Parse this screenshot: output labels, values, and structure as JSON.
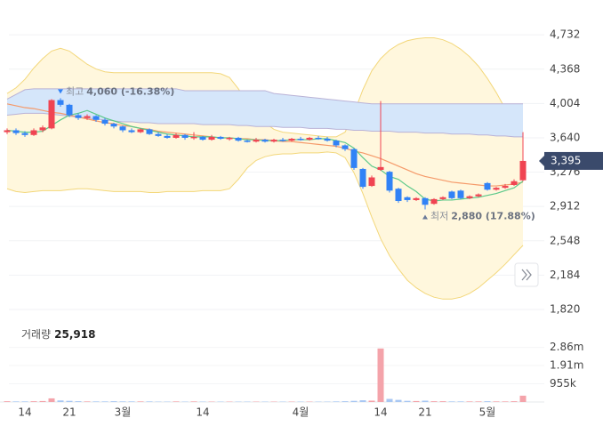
{
  "chart_data": {
    "type": "candlestick",
    "categories": [
      null,
      null,
      "14",
      null,
      null,
      null,
      null,
      "21",
      null,
      null,
      null,
      null,
      null,
      "3월",
      null,
      null,
      null,
      null,
      null,
      null,
      null,
      null,
      "14",
      null,
      null,
      null,
      null,
      null,
      null,
      null,
      null,
      null,
      null,
      "4월",
      null,
      null,
      null,
      null,
      null,
      null,
      null,
      null,
      "14",
      null,
      null,
      null,
      null,
      "21",
      null,
      null,
      null,
      null,
      null,
      null,
      "5월",
      null,
      null,
      null,
      null
    ],
    "open": [
      3700,
      3720,
      3690,
      3670,
      3720,
      3740,
      4040,
      3990,
      3880,
      3850,
      3870,
      3830,
      3790,
      3760,
      3720,
      3700,
      3730,
      3680,
      3660,
      3640,
      3670,
      3640,
      3650,
      3620,
      3650,
      3630,
      3640,
      3610,
      3600,
      3620,
      3600,
      3620,
      3610,
      3630,
      3620,
      3640,
      3630,
      3610,
      3560,
      3520,
      3310,
      3130,
      3300,
      3280,
      3100,
      3010,
      2980,
      3000,
      2940,
      2990,
      3070,
      3080,
      3000,
      3020,
      3160,
      3090,
      3110,
      3140,
      3190
    ],
    "high": [
      3740,
      3740,
      3710,
      3740,
      3770,
      4050,
      4060,
      4000,
      3900,
      3890,
      3880,
      3850,
      3800,
      3770,
      3740,
      3740,
      3740,
      3700,
      3680,
      3690,
      3680,
      3700,
      3660,
      3670,
      3660,
      3650,
      3650,
      3620,
      3640,
      3630,
      3630,
      3640,
      3640,
      3650,
      3650,
      3660,
      3650,
      3620,
      3570,
      3530,
      3320,
      3240,
      4030,
      3290,
      3110,
      3020,
      3010,
      3010,
      3000,
      3020,
      3080,
      3090,
      3030,
      3050,
      3170,
      3120,
      3150,
      3200,
      3700
    ],
    "low": [
      3680,
      3670,
      3650,
      3660,
      3700,
      3730,
      3970,
      3860,
      3830,
      3830,
      3810,
      3770,
      3740,
      3700,
      3690,
      3690,
      3670,
      3650,
      3630,
      3630,
      3620,
      3620,
      3610,
      3610,
      3620,
      3610,
      3600,
      3590,
      3590,
      3590,
      3590,
      3600,
      3600,
      3610,
      3610,
      3620,
      3600,
      3540,
      3500,
      3300,
      3100,
      3120,
      3290,
      3060,
      2950,
      2960,
      2970,
      2880,
      2930,
      2980,
      2990,
      2990,
      2990,
      3010,
      3080,
      3080,
      3100,
      3130,
      3180
    ],
    "close": [
      3720,
      3690,
      3670,
      3720,
      3750,
      4040,
      3990,
      3880,
      3850,
      3870,
      3830,
      3790,
      3760,
      3720,
      3700,
      3730,
      3680,
      3660,
      3640,
      3670,
      3640,
      3650,
      3620,
      3650,
      3630,
      3640,
      3610,
      3600,
      3620,
      3600,
      3620,
      3610,
      3630,
      3620,
      3640,
      3630,
      3610,
      3560,
      3520,
      3320,
      3120,
      3220,
      3330,
      3080,
      2970,
      2980,
      3000,
      2930,
      2990,
      3010,
      3000,
      3000,
      3020,
      3040,
      3090,
      3110,
      3130,
      3180,
      3395
    ],
    "up_color": "#f04452",
    "down_color": "#3182f6",
    "overlays": [
      {
        "kind": "band",
        "fill": "#fff7dd",
        "stroke": "#f3d77a",
        "upper": [
          4110,
          4170,
          4260,
          4380,
          4480,
          4560,
          4590,
          4560,
          4490,
          4420,
          4370,
          4340,
          4330,
          4330,
          4330,
          4330,
          4330,
          4330,
          4330,
          4330,
          4330,
          4330,
          4330,
          4330,
          4320,
          4280,
          4160,
          4020,
          3900,
          3800,
          3730,
          3700,
          3690,
          3680,
          3670,
          3660,
          3650,
          3650,
          3700,
          3900,
          4150,
          4350,
          4480,
          4570,
          4630,
          4670,
          4690,
          4700,
          4700,
          4680,
          4640,
          4580,
          4500,
          4400,
          4270,
          4120,
          3950,
          3800,
          3700
        ],
        "lower": [
          3100,
          3070,
          3060,
          3070,
          3080,
          3080,
          3080,
          3090,
          3100,
          3100,
          3090,
          3080,
          3070,
          3070,
          3070,
          3070,
          3060,
          3060,
          3070,
          3070,
          3070,
          3070,
          3080,
          3080,
          3080,
          3100,
          3200,
          3320,
          3400,
          3440,
          3460,
          3470,
          3470,
          3480,
          3480,
          3480,
          3490,
          3480,
          3430,
          3270,
          3050,
          2800,
          2570,
          2390,
          2250,
          2130,
          2050,
          1990,
          1950,
          1930,
          1930,
          1950,
          1990,
          2050,
          2130,
          2210,
          2300,
          2400,
          2500
        ]
      },
      {
        "kind": "band",
        "fill": "#d5e6fa",
        "stroke": "#b9b2d6",
        "upper": [
          4050,
          4100,
          4150,
          4160,
          4160,
          4160,
          4160,
          4160,
          4160,
          4160,
          4160,
          4160,
          4160,
          4160,
          4160,
          4160,
          4160,
          4160,
          4160,
          4160,
          4140,
          4140,
          4140,
          4140,
          4140,
          4140,
          4140,
          4140,
          4140,
          4140,
          4110,
          4100,
          4090,
          4080,
          4070,
          4060,
          4050,
          4040,
          4030,
          4020,
          4010,
          4000,
          4000,
          4000,
          4000,
          4000,
          4000,
          4000,
          4000,
          4000,
          4000,
          4000,
          4000,
          4000,
          4000,
          4000,
          4000,
          4000,
          4000
        ],
        "lower": [
          3880,
          3890,
          3900,
          3900,
          3900,
          3890,
          3880,
          3870,
          3860,
          3850,
          3840,
          3830,
          3820,
          3810,
          3810,
          3800,
          3800,
          3790,
          3790,
          3790,
          3790,
          3790,
          3780,
          3780,
          3780,
          3780,
          3770,
          3770,
          3760,
          3760,
          3760,
          3750,
          3750,
          3750,
          3740,
          3740,
          3740,
          3730,
          3730,
          3720,
          3720,
          3710,
          3710,
          3710,
          3700,
          3700,
          3700,
          3690,
          3690,
          3690,
          3680,
          3680,
          3680,
          3670,
          3670,
          3660,
          3660,
          3650,
          3650
        ]
      },
      {
        "kind": "line",
        "color": "#f59a6a",
        "values": [
          4000,
          3980,
          3960,
          3950,
          3930,
          3910,
          3900,
          3880,
          3860,
          3840,
          3820,
          3800,
          3790,
          3770,
          3760,
          3740,
          3730,
          3710,
          3700,
          3690,
          3680,
          3670,
          3660,
          3650,
          3640,
          3640,
          3630,
          3630,
          3620,
          3620,
          3610,
          3600,
          3600,
          3590,
          3580,
          3570,
          3560,
          3550,
          3530,
          3500,
          3480,
          3450,
          3420,
          3380,
          3340,
          3300,
          3260,
          3230,
          3210,
          3190,
          3170,
          3160,
          3150,
          3140,
          3130,
          3130,
          3140,
          3150,
          3170
        ]
      },
      {
        "kind": "line",
        "color": "#5cc98a",
        "values": [
          3720,
          3710,
          3700,
          3700,
          3710,
          3770,
          3830,
          3880,
          3900,
          3930,
          3890,
          3850,
          3820,
          3790,
          3760,
          3740,
          3720,
          3700,
          3680,
          3670,
          3660,
          3650,
          3650,
          3650,
          3640,
          3640,
          3630,
          3620,
          3620,
          3610,
          3610,
          3610,
          3620,
          3620,
          3620,
          3630,
          3630,
          3610,
          3590,
          3530,
          3430,
          3340,
          3300,
          3230,
          3200,
          3130,
          3070,
          2990,
          2970,
          2980,
          2980,
          2990,
          3000,
          3010,
          3030,
          3050,
          3080,
          3110,
          3180
        ]
      }
    ],
    "ylim": [
      1782,
      5007
    ],
    "yticks": [
      {
        "value": 1820,
        "label": "1,820"
      },
      {
        "value": 2184,
        "label": "2,184"
      },
      {
        "value": 2548,
        "label": "2,548"
      },
      {
        "value": 2912,
        "label": "2,912"
      },
      {
        "value": 3276,
        "label": "3,276"
      },
      {
        "value": 3640,
        "label": "3,640"
      },
      {
        "value": 4004,
        "label": "4,004"
      },
      {
        "value": 4368,
        "label": "4,368"
      },
      {
        "value": 4732,
        "label": "4,732"
      }
    ],
    "grid": true,
    "current_price": {
      "value": 3395,
      "label": "3,395",
      "color": "#3a4a6b"
    },
    "high_marker": {
      "label": "최고",
      "text": "4,060 (-16.38%)"
    },
    "low_marker": {
      "label": "최저",
      "text": "2,880 (17.88%)"
    },
    "volume": {
      "title": "거래량",
      "value_text": "25,918",
      "up_color": "#f4a3aa",
      "down_color": "#a8c7f3",
      "values": [
        40000,
        30000,
        30000,
        40000,
        50000,
        190000,
        80000,
        60000,
        40000,
        30000,
        30000,
        30000,
        40000,
        30000,
        30000,
        30000,
        30000,
        20000,
        20000,
        30000,
        20000,
        30000,
        20000,
        20000,
        20000,
        20000,
        20000,
        20000,
        20000,
        20000,
        20000,
        20000,
        20000,
        20000,
        20000,
        20000,
        20000,
        30000,
        40000,
        60000,
        90000,
        70000,
        2800000,
        160000,
        110000,
        60000,
        50000,
        70000,
        40000,
        40000,
        30000,
        30000,
        30000,
        30000,
        40000,
        30000,
        30000,
        40000,
        330000
      ],
      "ylim": [
        0,
        4190000
      ],
      "yticks": [
        {
          "value": 955000,
          "label": "955k"
        },
        {
          "value": 1910000,
          "label": "1.91m"
        },
        {
          "value": 2860000,
          "label": "2.86m"
        }
      ]
    }
  }
}
